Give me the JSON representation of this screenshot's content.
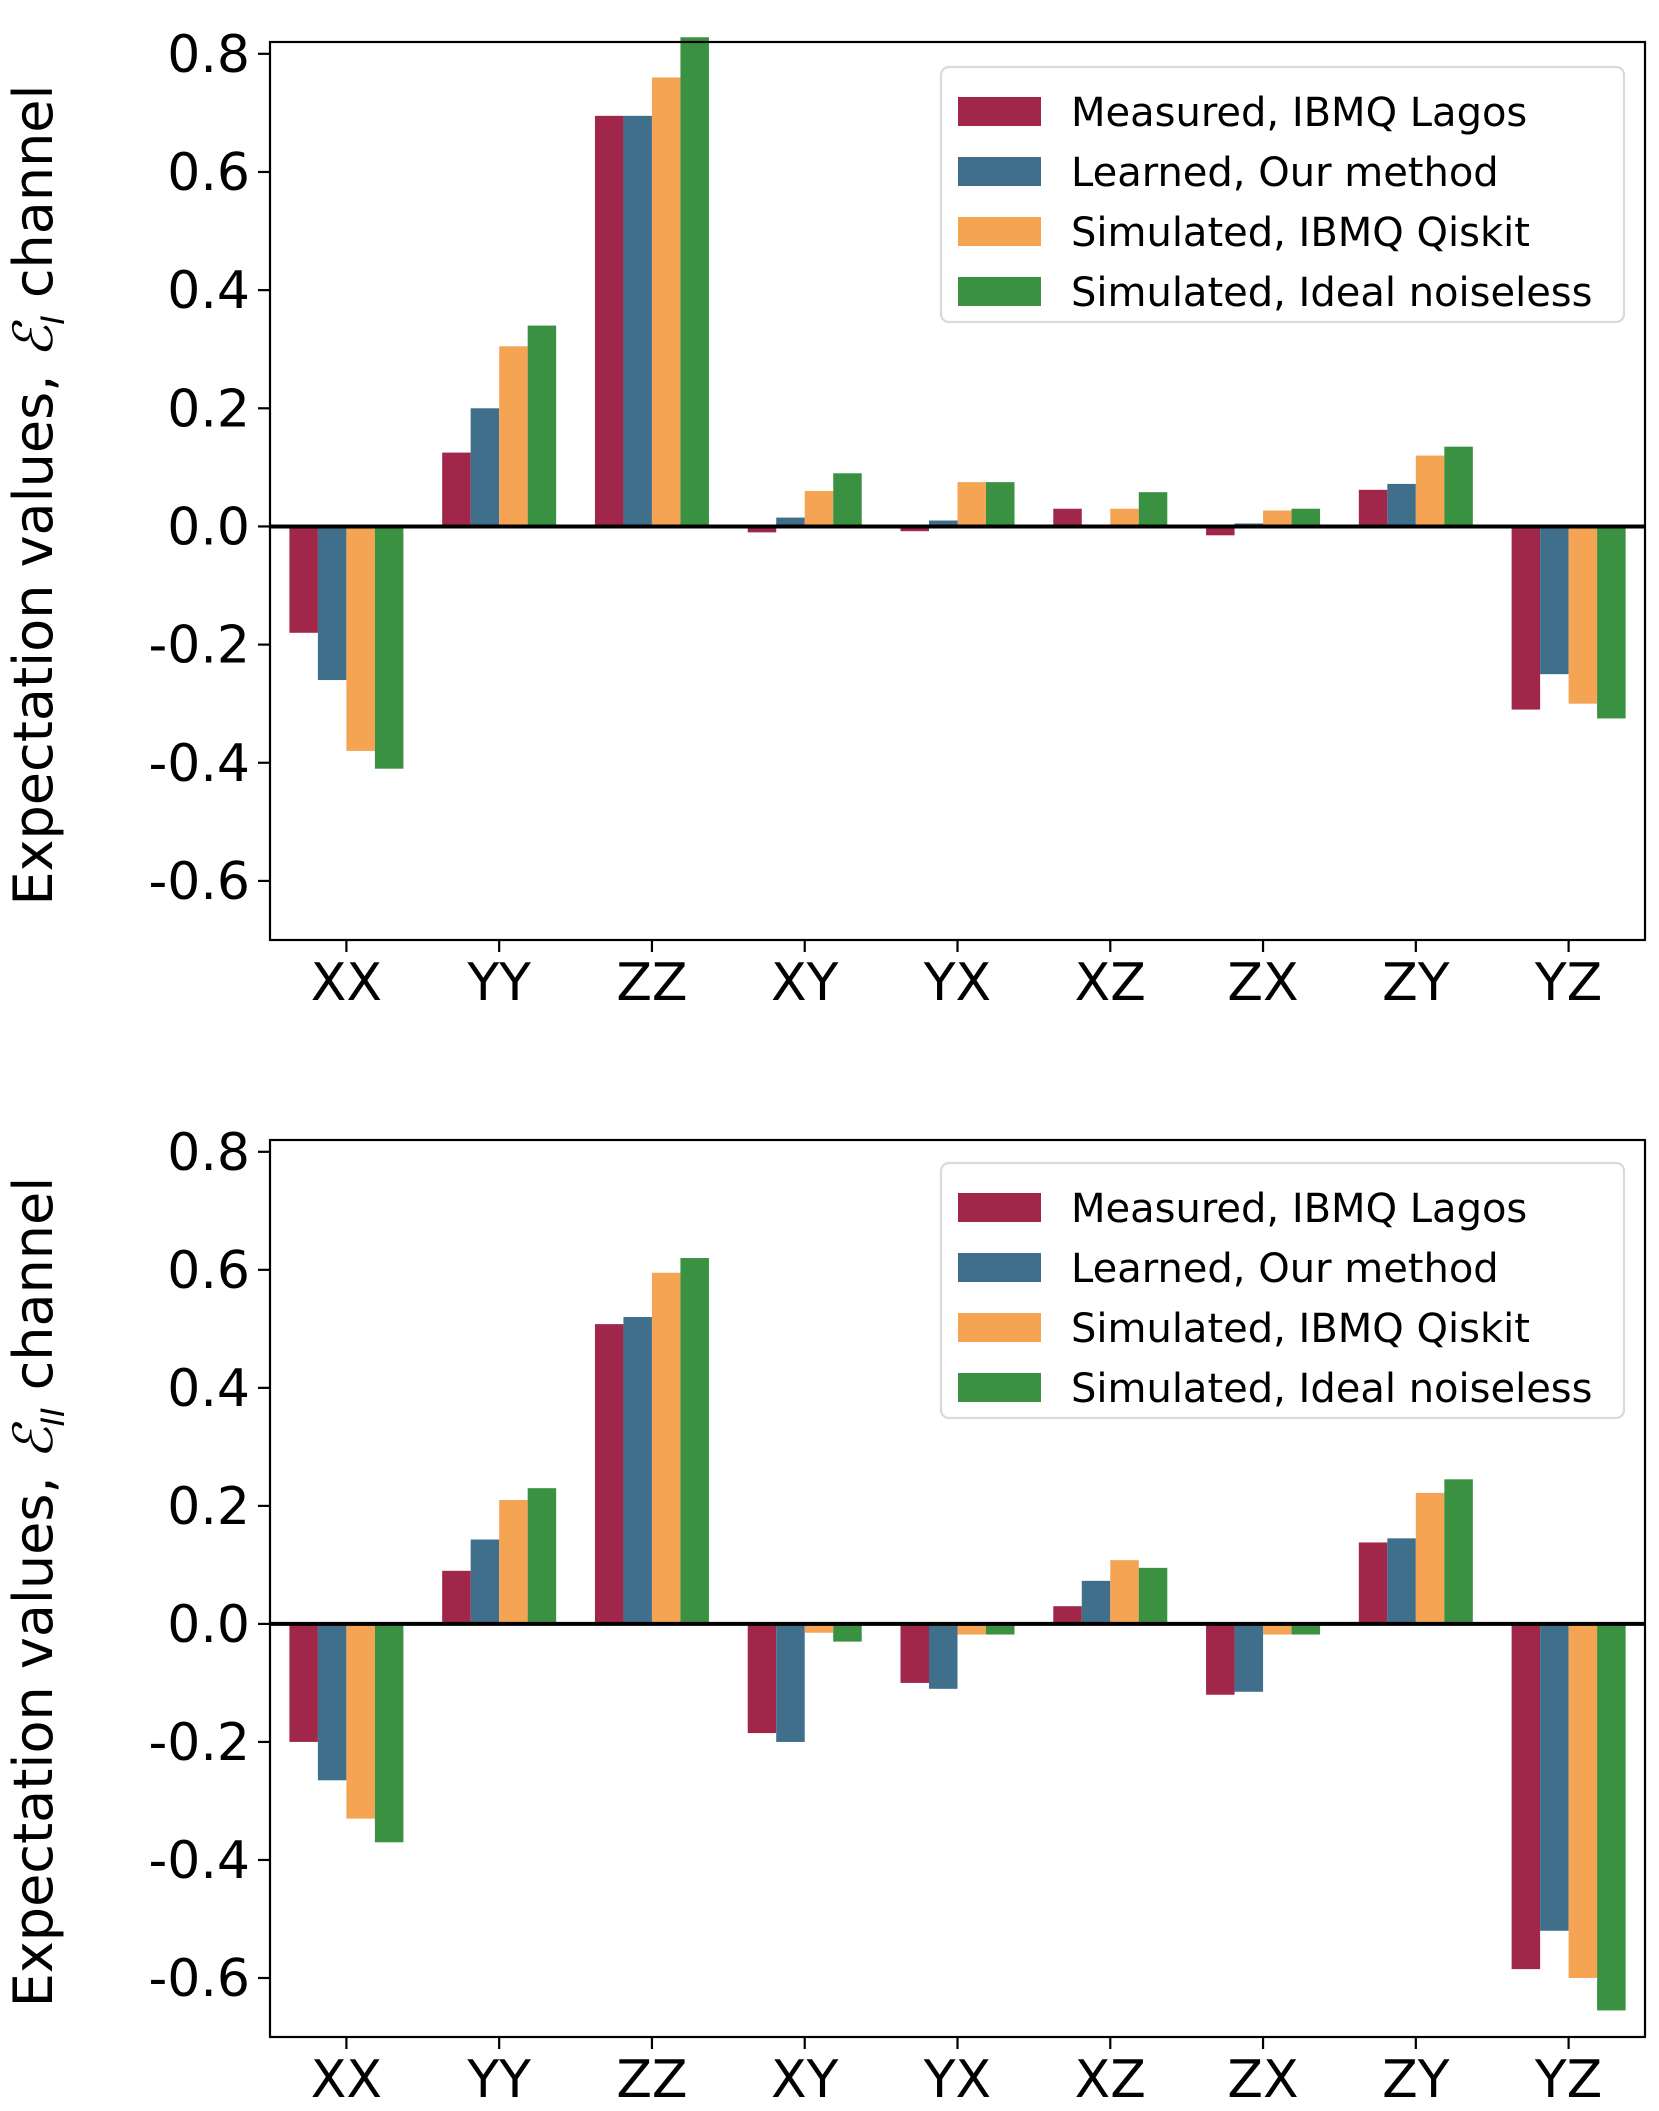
{
  "chart_data": [
    {
      "type": "bar",
      "ylabel_prefix": "Expectation values, ",
      "ylabel_symbol": "ℰ",
      "ylabel_subscript": "I",
      "ylabel_suffix": " channel",
      "ylim": [
        -0.7,
        0.82
      ],
      "yticks": [
        "0.8",
        "0.6",
        "0.4",
        "0.2",
        "0.0",
        "-0.2",
        "-0.4",
        "-0.6"
      ],
      "ytick_values": [
        0.8,
        0.6,
        0.4,
        0.2,
        0.0,
        -0.2,
        -0.4,
        -0.6
      ],
      "categories": [
        "XX",
        "YY",
        "ZZ",
        "XY",
        "YX",
        "XZ",
        "ZX",
        "ZY",
        "YZ"
      ],
      "legend_position": "top-right",
      "series": [
        {
          "name": "Measured, IBMQ Lagos",
          "color": "#a0274a",
          "values": [
            -0.18,
            0.125,
            0.695,
            -0.01,
            -0.008,
            0.03,
            -0.015,
            0.062,
            -0.31
          ]
        },
        {
          "name": "Learned, Our method",
          "color": "#3f6f8a",
          "values": [
            -0.26,
            0.2,
            0.695,
            0.015,
            0.01,
            0.003,
            0.005,
            0.072,
            -0.25
          ]
        },
        {
          "name": "Simulated, IBMQ Qiskit",
          "color": "#f5a454",
          "values": [
            -0.38,
            0.305,
            0.76,
            0.06,
            0.075,
            0.03,
            0.027,
            0.12,
            -0.3
          ]
        },
        {
          "name": "Simulated, Ideal noiseless",
          "color": "#3a9142",
          "values": [
            -0.41,
            0.34,
            0.828,
            0.09,
            0.075,
            0.058,
            0.03,
            0.135,
            -0.325
          ]
        }
      ]
    },
    {
      "type": "bar",
      "ylabel_prefix": "Expectation values, ",
      "ylabel_symbol": "ℰ",
      "ylabel_subscript": "II",
      "ylabel_suffix": " channel",
      "ylim": [
        -0.7,
        0.82
      ],
      "yticks": [
        "0.8",
        "0.6",
        "0.4",
        "0.2",
        "0.0",
        "-0.2",
        "-0.4",
        "-0.6"
      ],
      "ytick_values": [
        0.8,
        0.6,
        0.4,
        0.2,
        0.0,
        -0.2,
        -0.4,
        -0.6
      ],
      "categories": [
        "XX",
        "YY",
        "ZZ",
        "XY",
        "YX",
        "XZ",
        "ZX",
        "ZY",
        "YZ"
      ],
      "legend_position": "top-right",
      "series": [
        {
          "name": "Measured, IBMQ Lagos",
          "color": "#a0274a",
          "values": [
            -0.2,
            0.09,
            0.508,
            -0.185,
            -0.1,
            0.03,
            -0.12,
            0.138,
            -0.585
          ]
        },
        {
          "name": "Learned, Our method",
          "color": "#3f6f8a",
          "values": [
            -0.265,
            0.143,
            0.52,
            -0.2,
            -0.11,
            0.073,
            -0.115,
            0.145,
            -0.52
          ]
        },
        {
          "name": "Simulated, IBMQ Qiskit",
          "color": "#f5a454",
          "values": [
            -0.33,
            0.21,
            0.595,
            -0.015,
            -0.018,
            0.108,
            -0.018,
            0.222,
            -0.6
          ]
        },
        {
          "name": "Simulated, Ideal noiseless",
          "color": "#3a9142",
          "values": [
            -0.37,
            0.23,
            0.62,
            -0.03,
            -0.018,
            0.095,
            -0.018,
            0.245,
            -0.655
          ]
        }
      ]
    }
  ]
}
